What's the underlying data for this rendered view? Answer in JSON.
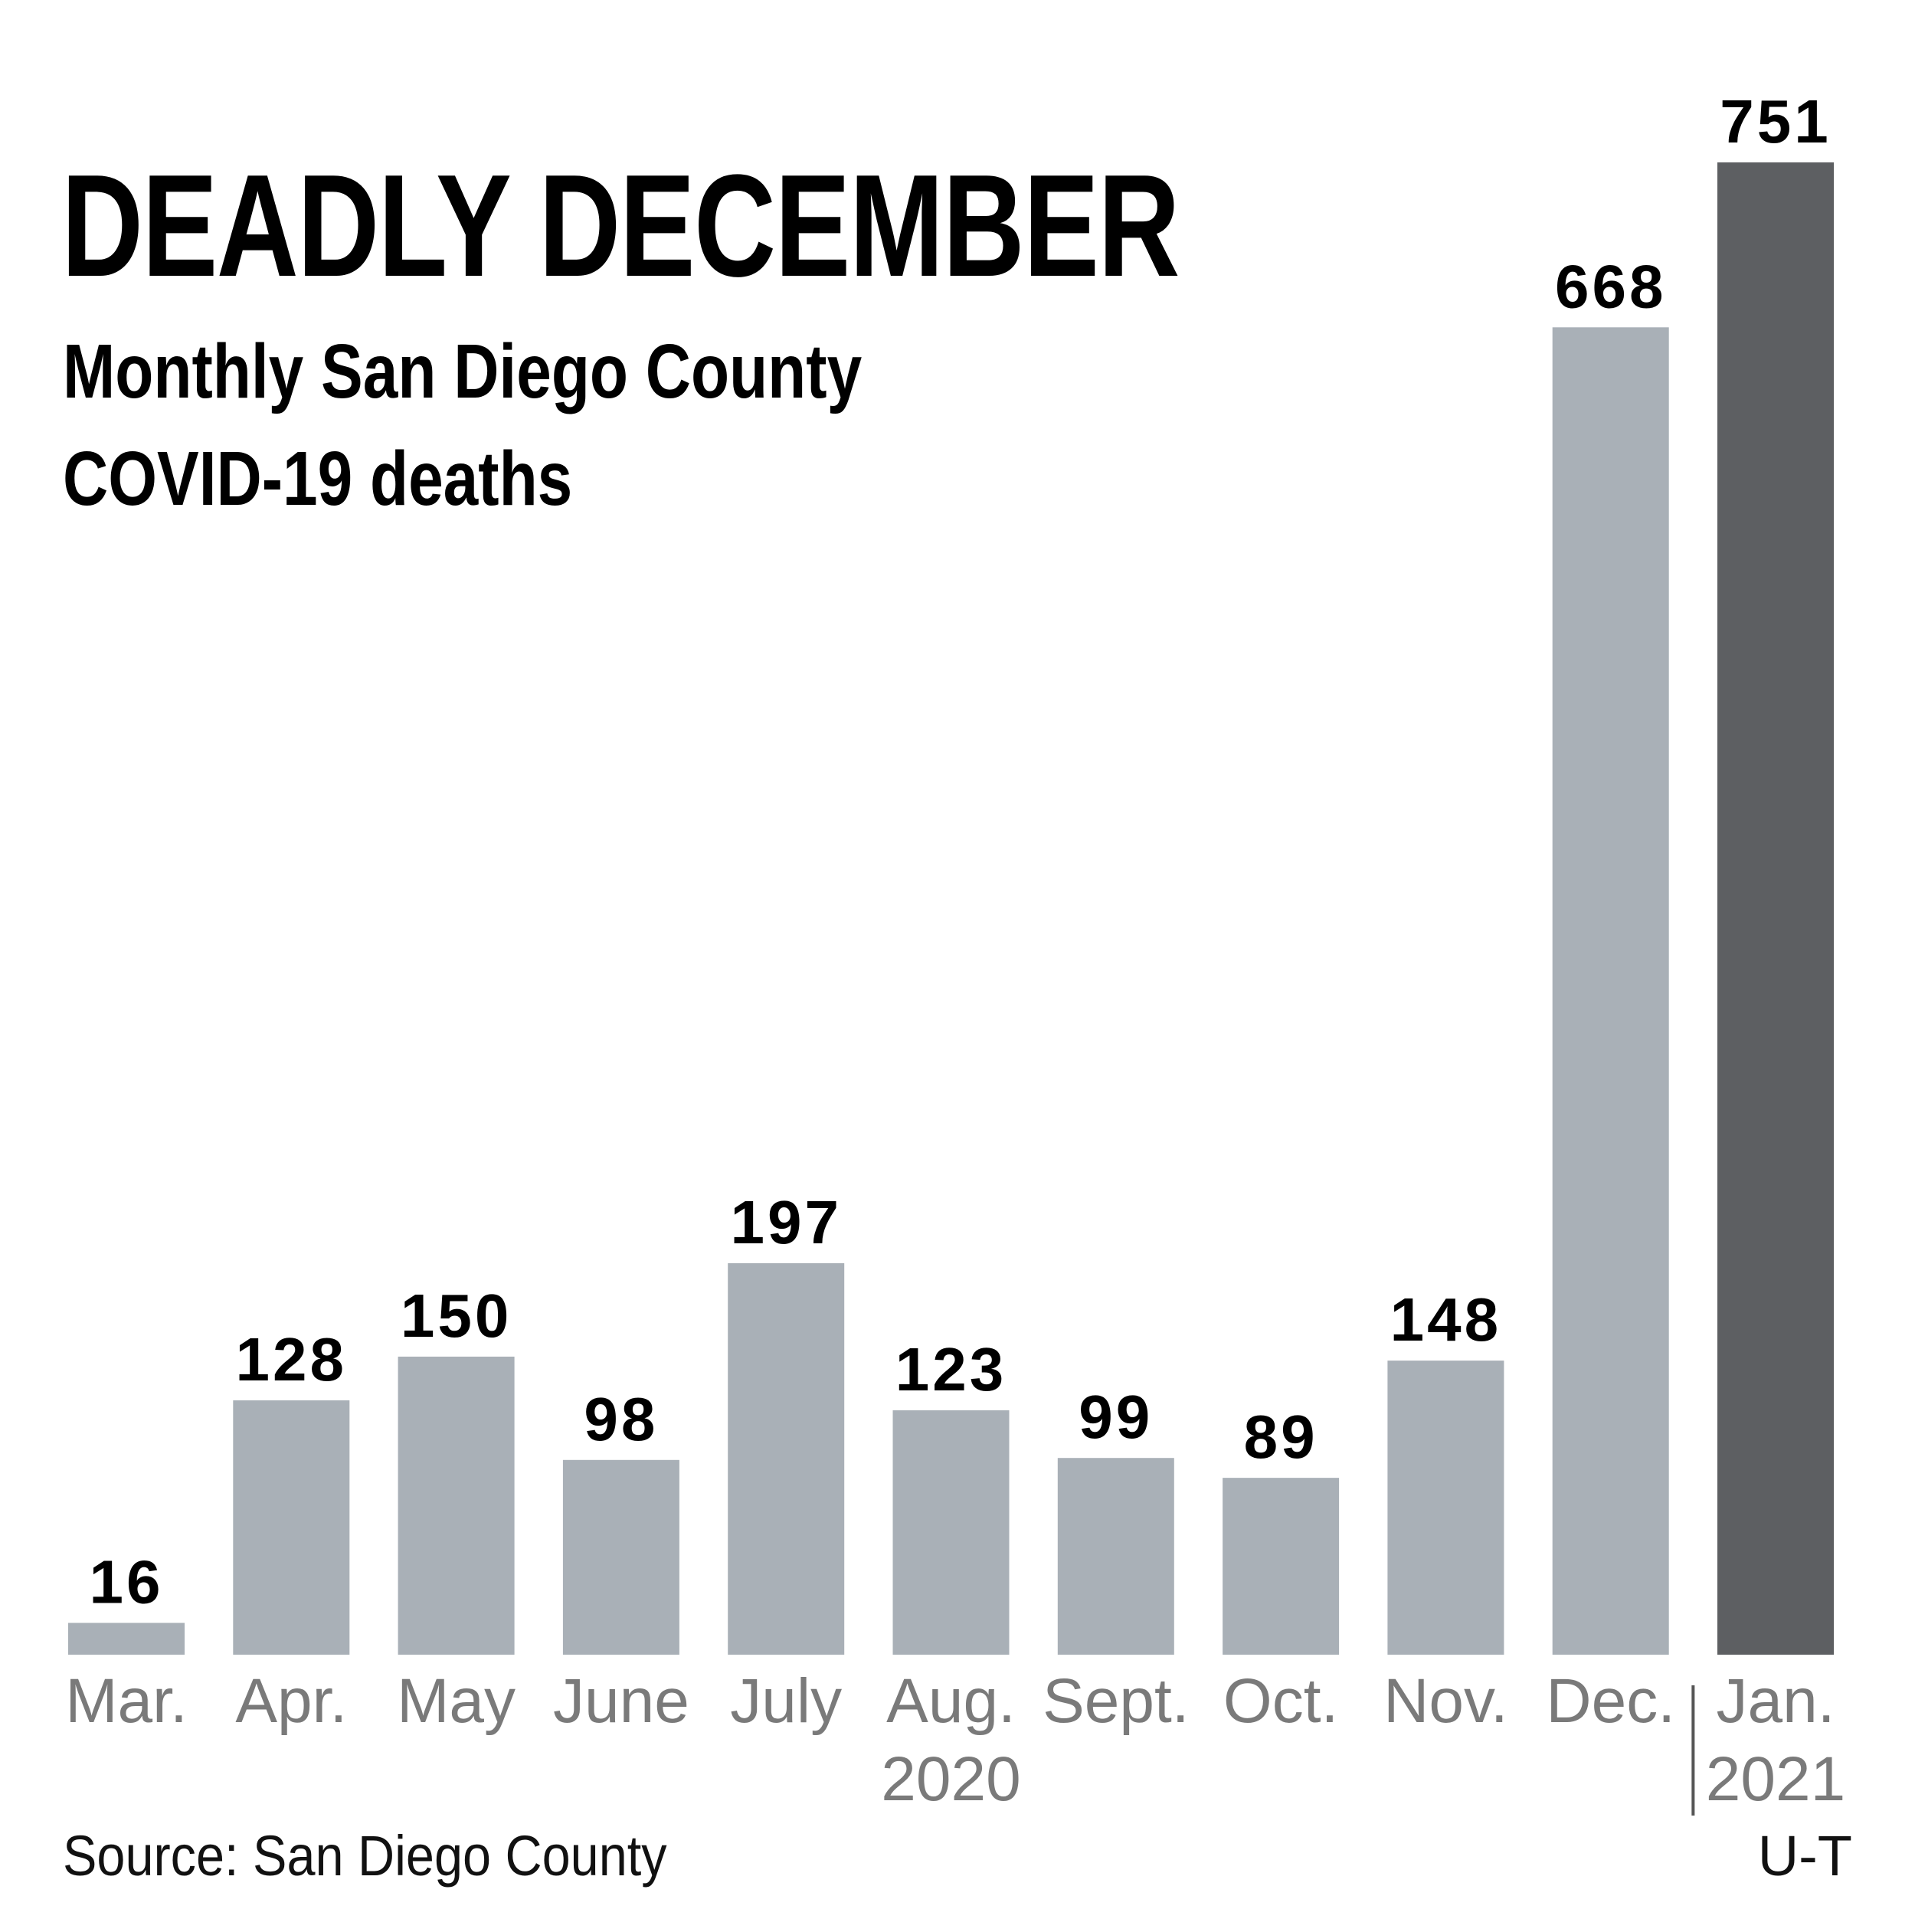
{
  "title": "DEADLY DECEMBER",
  "subtitle_lines": [
    "Monthly San Diego County",
    "COVID-19 deaths"
  ],
  "source": "Source: San Diego County",
  "credit": "U-T",
  "colors": {
    "bar": "#a9b0b7",
    "highlight": "#5d5f62",
    "label": "#000000",
    "axis_text": "#7a7a7a"
  },
  "chart_data": {
    "type": "bar",
    "title": "DEADLY DECEMBER",
    "subtitle": "Monthly San Diego County COVID-19 deaths",
    "categories": [
      "Mar.",
      "Apr.",
      "May",
      "June",
      "July",
      "Aug.",
      "Sept.",
      "Oct.",
      "Nov.",
      "Dec.",
      "Jan."
    ],
    "values": [
      16,
      128,
      150,
      98,
      197,
      123,
      99,
      89,
      148,
      668,
      751
    ],
    "highlight_index": 10,
    "year_labels": [
      {
        "text": "2020",
        "category": "Aug."
      },
      {
        "text": "2021",
        "category": "Jan."
      }
    ],
    "year_divider_between": [
      "Dec.",
      "Jan."
    ],
    "ylim": [
      0,
      751
    ],
    "grid": false,
    "legend": "none",
    "data_labels": true
  }
}
